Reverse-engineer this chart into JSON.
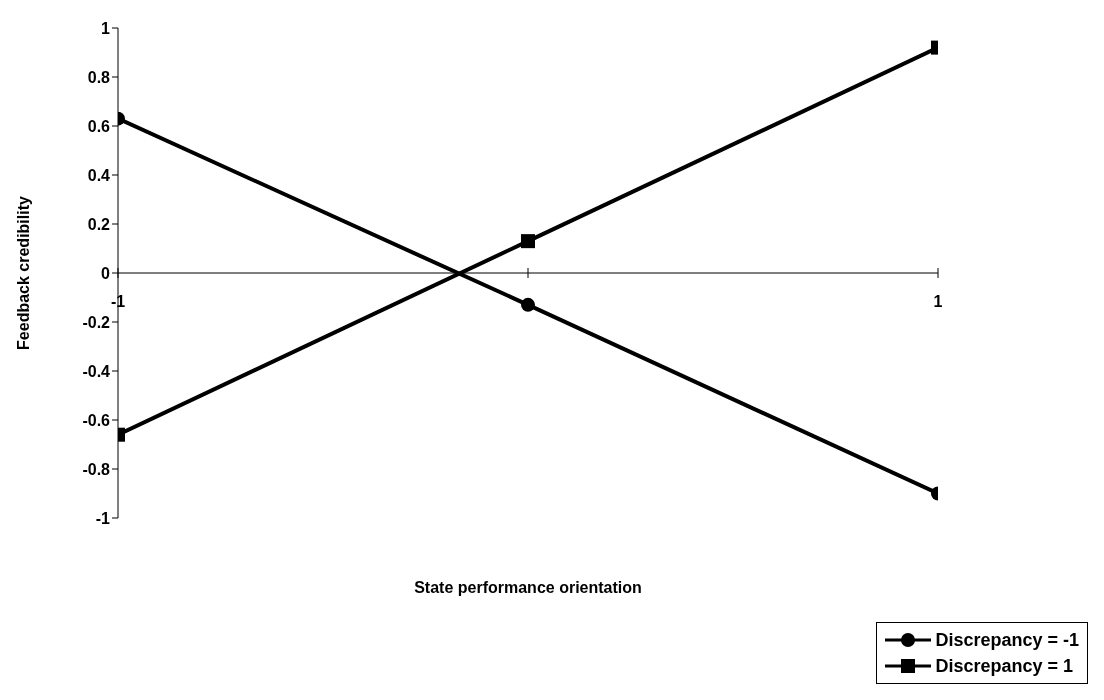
{
  "chart_data": {
    "type": "line",
    "xlabel": "State performance orientation",
    "ylabel": "Feedback credibility",
    "x": [
      -1,
      0,
      1
    ],
    "xlim": [
      -1,
      1
    ],
    "xticks": [
      -1,
      {
        "value": 0,
        "label": null
      },
      1
    ],
    "ylim": [
      -1,
      1
    ],
    "yticks": [
      -1,
      -0.8,
      -0.6,
      -0.4,
      -0.2,
      0,
      0.2,
      0.4,
      0.6,
      0.8,
      1
    ],
    "series": [
      {
        "name": "Discrepancy = -1",
        "color": "#000000",
        "marker": "circle",
        "values": [
          0.63,
          -0.13,
          -0.9
        ]
      },
      {
        "name": "Discrepancy = 1",
        "color": "#000000",
        "marker": "square",
        "values": [
          -0.66,
          0.13,
          0.92
        ]
      }
    ],
    "grid": false,
    "legend": "bottom right",
    "line_style": "solid"
  }
}
